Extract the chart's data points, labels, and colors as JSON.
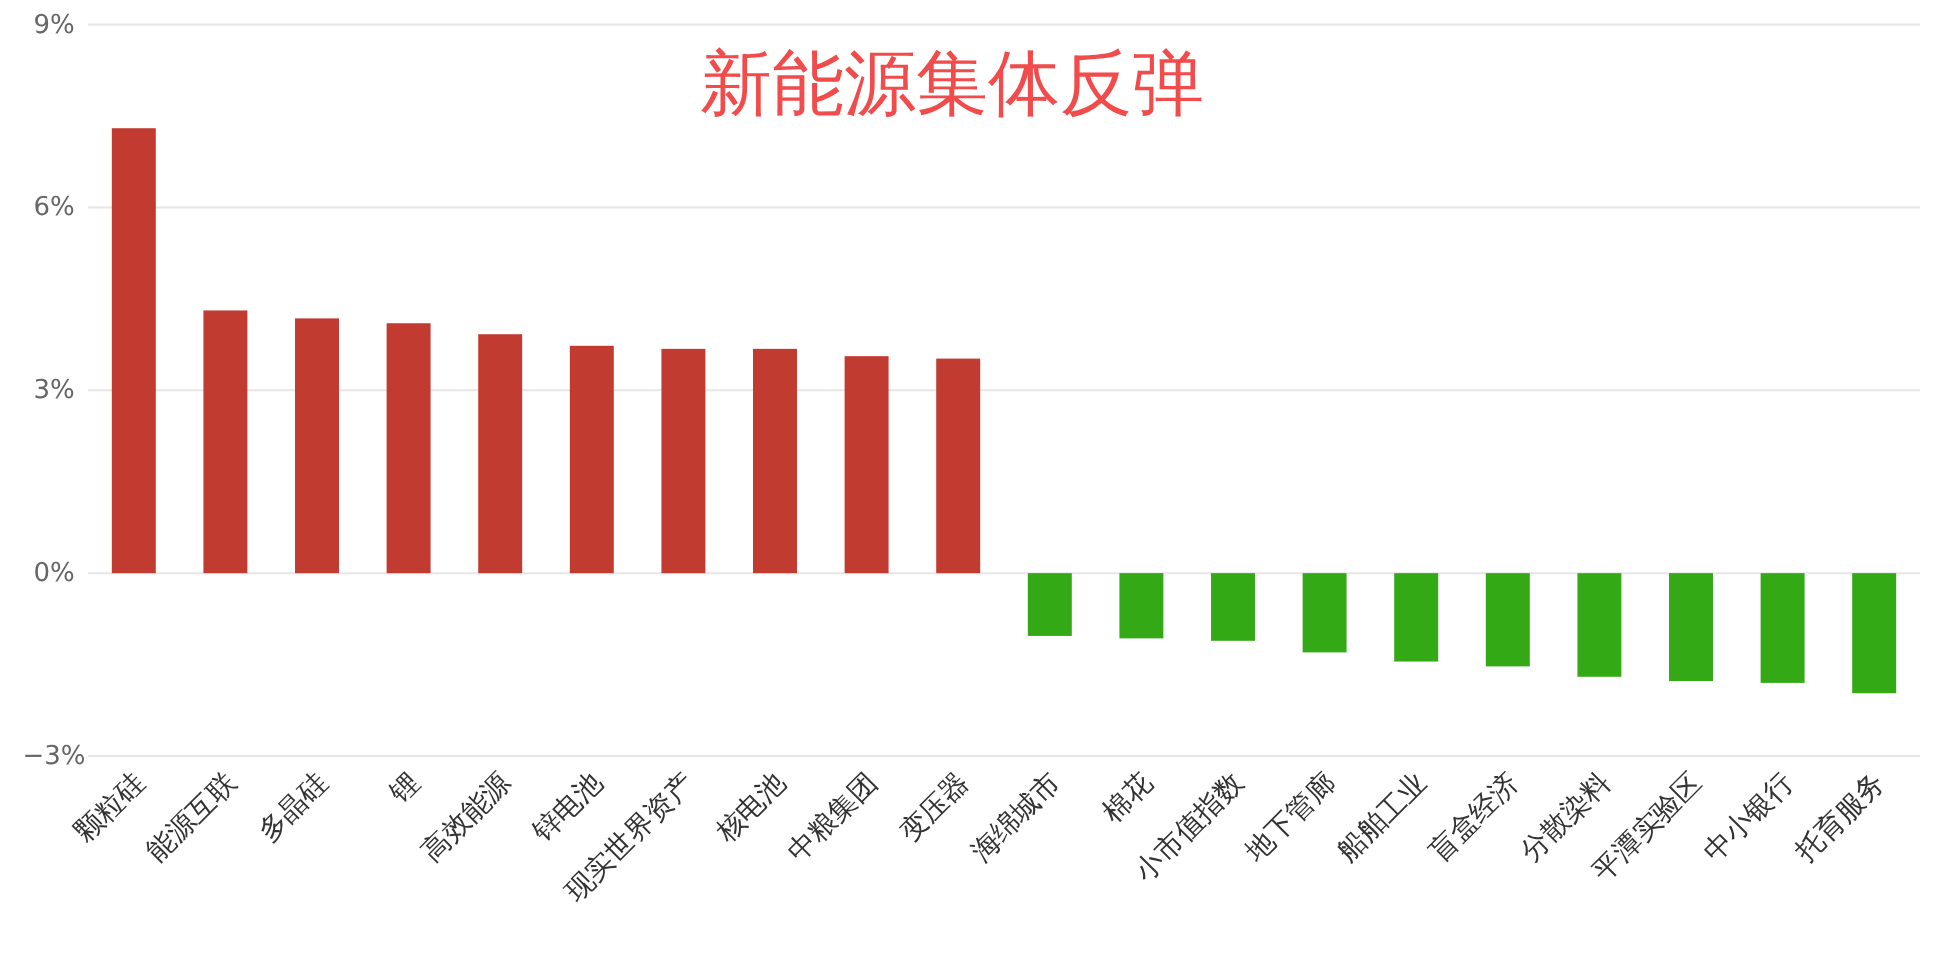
{
  "chart_data": {
    "type": "bar",
    "title": "新能源集体反弹",
    "categories": [
      "颗粒硅",
      "能源互联",
      "多晶硅",
      "锂",
      "高效能源",
      "锌电池",
      "现实世界资产",
      "核电池",
      "中粮集团",
      "变压器",
      "海绵城市",
      "棉花",
      "小市值指数",
      "地下管廊",
      "船舶工业",
      "盲盒经济",
      "分散染料",
      "平潭实验区",
      "中小银行",
      "托育服务"
    ],
    "values": [
      7.3,
      4.31,
      4.18,
      4.1,
      3.92,
      3.73,
      3.68,
      3.68,
      3.56,
      3.52,
      -1.03,
      -1.07,
      -1.11,
      -1.3,
      -1.45,
      -1.53,
      -1.7,
      -1.77,
      -1.8,
      -1.97
    ],
    "colors": [
      "#c23b31",
      "#c23b31",
      "#c23b31",
      "#c23b31",
      "#c23b31",
      "#c23b31",
      "#c23b31",
      "#c23b31",
      "#c23b31",
      "#c23b31",
      "#34a916",
      "#34a916",
      "#34a916",
      "#34a916",
      "#34a916",
      "#34a916",
      "#34a916",
      "#34a916",
      "#34a916",
      "#34a916"
    ],
    "ylim": [
      -3,
      9
    ],
    "yticks": [
      {
        "value": -3,
        "label": "−3%"
      },
      {
        "value": 0,
        "label": "0%"
      },
      {
        "value": 3,
        "label": "3%"
      },
      {
        "value": 6,
        "label": "6%"
      },
      {
        "value": 9,
        "label": "9%"
      }
    ],
    "grid": "y"
  }
}
